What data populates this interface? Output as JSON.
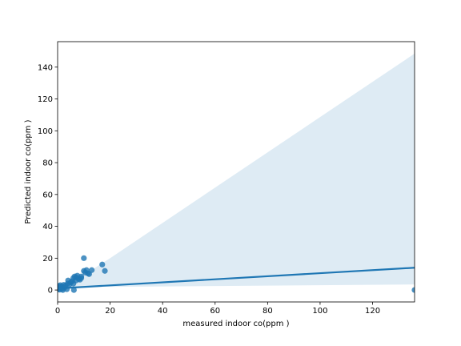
{
  "chart_data": {
    "type": "scatter",
    "xlabel": "measured indoor co(ppm  )",
    "ylabel": "Predicted indoor co(ppm  )",
    "xlim": [
      0,
      136
    ],
    "ylim": [
      -7.5,
      156
    ],
    "x_ticks": [
      0,
      20,
      40,
      60,
      80,
      100,
      120
    ],
    "y_ticks": [
      0,
      20,
      40,
      60,
      80,
      100,
      120,
      140
    ],
    "grid": false,
    "colors": {
      "points": "#1f77b4",
      "line": "#1f77b4",
      "band": "#1f77b4"
    },
    "points": [
      {
        "x": 0.2,
        "y": 0.5
      },
      {
        "x": 0.4,
        "y": 2.5
      },
      {
        "x": 0.6,
        "y": 1.2
      },
      {
        "x": 0.8,
        "y": 0.2
      },
      {
        "x": 1.0,
        "y": 3.0
      },
      {
        "x": 1.2,
        "y": 1.8
      },
      {
        "x": 1.5,
        "y": 2.2
      },
      {
        "x": 1.8,
        "y": 0.8
      },
      {
        "x": 2.0,
        "y": 0.0
      },
      {
        "x": 2.3,
        "y": 3.2
      },
      {
        "x": 2.6,
        "y": 1.5
      },
      {
        "x": 3.0,
        "y": 2.8
      },
      {
        "x": 3.5,
        "y": 0.5
      },
      {
        "x": 3.8,
        "y": 4.0
      },
      {
        "x": 4.0,
        "y": 6.0
      },
      {
        "x": 4.5,
        "y": 3.5
      },
      {
        "x": 5.0,
        "y": 4.8
      },
      {
        "x": 5.5,
        "y": 5.5
      },
      {
        "x": 6.0,
        "y": 4.0
      },
      {
        "x": 6.0,
        "y": 7.5
      },
      {
        "x": 6.2,
        "y": 0.0
      },
      {
        "x": 6.5,
        "y": 8.5
      },
      {
        "x": 7.0,
        "y": 6.0
      },
      {
        "x": 7.0,
        "y": 8.0
      },
      {
        "x": 7.5,
        "y": 9.0
      },
      {
        "x": 8.0,
        "y": 7.0
      },
      {
        "x": 8.5,
        "y": 6.5
      },
      {
        "x": 9.0,
        "y": 7.5
      },
      {
        "x": 9.0,
        "y": 8.5
      },
      {
        "x": 10.0,
        "y": 12.0
      },
      {
        "x": 10.0,
        "y": 20.0
      },
      {
        "x": 10.5,
        "y": 11.0
      },
      {
        "x": 11.0,
        "y": 12.5
      },
      {
        "x": 11.5,
        "y": 10.5
      },
      {
        "x": 12.0,
        "y": 10.0
      },
      {
        "x": 13.0,
        "y": 12.5
      },
      {
        "x": 17.0,
        "y": 16.0
      },
      {
        "x": 18.0,
        "y": 12.0
      },
      {
        "x": 136.0,
        "y": 0.0
      }
    ],
    "regression_line": [
      {
        "x": 0,
        "y": 1.0
      },
      {
        "x": 136,
        "y": 14.0
      }
    ],
    "confidence_band": {
      "upper": [
        {
          "x": 0,
          "y": 2.5
        },
        {
          "x": 10,
          "y": 9.5
        },
        {
          "x": 20,
          "y": 20.0
        },
        {
          "x": 136,
          "y": 148.5
        }
      ],
      "lower": [
        {
          "x": 0,
          "y": 0.0
        },
        {
          "x": 10,
          "y": 2.5
        },
        {
          "x": 20,
          "y": 2.0
        },
        {
          "x": 136,
          "y": 3.5
        }
      ]
    }
  }
}
